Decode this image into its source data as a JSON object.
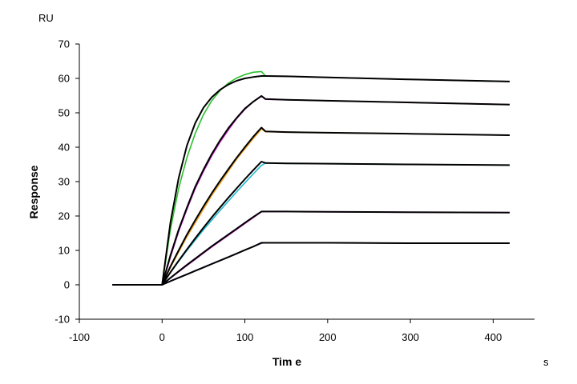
{
  "chart_data": {
    "type": "line",
    "title": "",
    "xlabel": "Tim e",
    "ylabel": "Response",
    "x_unit": "s",
    "y_unit": "RU",
    "xlim": [
      -100,
      450
    ],
    "ylim": [
      -10,
      70
    ],
    "x_ticks": [
      "-100",
      "0",
      "100",
      "200",
      "300",
      "400"
    ],
    "y_ticks": [
      "-10",
      "0",
      "10",
      "20",
      "30",
      "40",
      "50",
      "60",
      "70"
    ],
    "grid": false,
    "legend": "none",
    "association_end_s": 120,
    "series": [
      {
        "color": "#2bbf2b",
        "x": [
          -60,
          0,
          10,
          20,
          30,
          40,
          50,
          60,
          70,
          80,
          90,
          100,
          110,
          120,
          125,
          150,
          200,
          300,
          420
        ],
        "values": [
          0,
          0,
          16,
          28,
          37,
          44,
          49.5,
          53.5,
          56.5,
          58.6,
          60.1,
          61.1,
          61.8,
          62.0,
          60.7,
          60.6,
          60.3,
          59.7,
          59.1
        ]
      },
      {
        "color": "#000000",
        "x": [
          -60,
          0,
          10,
          20,
          30,
          40,
          50,
          60,
          70,
          80,
          90,
          100,
          110,
          120,
          125,
          150,
          200,
          300,
          420
        ],
        "values": [
          0,
          0,
          18,
          31,
          40.5,
          47,
          51.5,
          54.5,
          56.7,
          58.2,
          59.3,
          60.0,
          60.4,
          60.7,
          60.7,
          60.6,
          60.3,
          59.7,
          59.1
        ]
      },
      {
        "color": "#cc1fcc",
        "x": [
          -60,
          0,
          10,
          20,
          30,
          40,
          50,
          60,
          70,
          80,
          90,
          100,
          110,
          120,
          125,
          150,
          200,
          300,
          420
        ],
        "values": [
          0,
          0,
          8,
          15.5,
          22,
          28,
          33,
          37.5,
          41.5,
          45,
          48.3,
          51,
          53.2,
          54.8,
          53.9,
          53.8,
          53.5,
          53.0,
          52.4
        ]
      },
      {
        "color": "#000000",
        "x": [
          -60,
          0,
          10,
          20,
          30,
          40,
          50,
          60,
          70,
          80,
          90,
          100,
          110,
          120,
          125,
          150,
          200,
          300,
          420
        ],
        "values": [
          0,
          0,
          8.5,
          16,
          22.5,
          28.5,
          33.5,
          38,
          42,
          45.5,
          48.5,
          51.2,
          53.2,
          54.9,
          54.0,
          53.8,
          53.5,
          53.0,
          52.4
        ]
      },
      {
        "color": "#f0a020",
        "x": [
          -60,
          0,
          10,
          20,
          30,
          40,
          50,
          60,
          70,
          80,
          90,
          100,
          110,
          120,
          125,
          150,
          200,
          300,
          420
        ],
        "values": [
          0,
          0,
          5,
          9.5,
          14,
          18,
          22,
          26,
          29.5,
          33,
          36.5,
          39.5,
          42.5,
          45.3,
          44.5,
          44.4,
          44.2,
          43.9,
          43.5
        ]
      },
      {
        "color": "#000000",
        "x": [
          -60,
          0,
          10,
          20,
          30,
          40,
          50,
          60,
          70,
          80,
          90,
          100,
          110,
          120,
          125,
          150,
          200,
          300,
          420
        ],
        "values": [
          0,
          0,
          5.3,
          10,
          14.6,
          18.8,
          22.8,
          26.6,
          30.2,
          33.6,
          36.9,
          40,
          43,
          45.7,
          44.6,
          44.4,
          44.2,
          43.9,
          43.5
        ]
      },
      {
        "color": "#20b8d0",
        "x": [
          -60,
          0,
          10,
          20,
          30,
          40,
          50,
          60,
          70,
          80,
          90,
          100,
          110,
          120,
          125,
          150,
          200,
          300,
          420
        ],
        "values": [
          0,
          0,
          3.5,
          6.8,
          10,
          13,
          16,
          18.8,
          21.6,
          24.3,
          27,
          29.6,
          32.2,
          34.7,
          35.4,
          35.3,
          35.2,
          35.0,
          34.8
        ]
      },
      {
        "color": "#000000",
        "x": [
          -60,
          0,
          10,
          20,
          30,
          40,
          50,
          60,
          70,
          80,
          90,
          100,
          110,
          120,
          125,
          150,
          200,
          300,
          420
        ],
        "values": [
          0,
          0,
          3.6,
          7,
          10.3,
          13.5,
          16.6,
          19.6,
          22.5,
          25.3,
          28,
          30.7,
          33.3,
          35.8,
          35.4,
          35.3,
          35.2,
          35.0,
          34.8
        ]
      },
      {
        "color": "#d020d0",
        "x": [
          -60,
          0,
          10,
          20,
          30,
          40,
          50,
          60,
          70,
          80,
          90,
          100,
          110,
          120,
          125,
          150,
          200,
          300,
          420
        ],
        "values": [
          0,
          0,
          1.9,
          3.8,
          5.6,
          7.4,
          9.2,
          11,
          12.7,
          14.4,
          16.1,
          17.8,
          19.5,
          21.2,
          21.3,
          21.3,
          21.2,
          21.1,
          21.0
        ]
      },
      {
        "color": "#000000",
        "x": [
          -60,
          0,
          10,
          20,
          30,
          40,
          50,
          60,
          70,
          80,
          90,
          100,
          110,
          120,
          125,
          150,
          200,
          300,
          420
        ],
        "values": [
          0,
          0,
          2,
          3.9,
          5.8,
          7.6,
          9.4,
          11.2,
          12.9,
          14.6,
          16.3,
          18,
          19.7,
          21.3,
          21.3,
          21.3,
          21.2,
          21.1,
          21.0
        ]
      },
      {
        "color": "#2020d0",
        "x": [
          -60,
          0,
          10,
          20,
          30,
          40,
          50,
          60,
          70,
          80,
          90,
          100,
          110,
          120,
          125,
          150,
          200,
          300,
          420
        ],
        "values": [
          0,
          0,
          1.1,
          2.1,
          3.1,
          4.1,
          5.1,
          6.1,
          7.1,
          8.1,
          9.1,
          10.1,
          11.1,
          12.1,
          12.2,
          12.2,
          12.2,
          12.1,
          12.1
        ]
      },
      {
        "color": "#000000",
        "x": [
          -60,
          0,
          10,
          20,
          30,
          40,
          50,
          60,
          70,
          80,
          90,
          100,
          110,
          120,
          125,
          150,
          200,
          300,
          420
        ],
        "values": [
          0,
          0,
          1.05,
          2.05,
          3.05,
          4.05,
          5.05,
          6.05,
          7.05,
          8.05,
          9.05,
          10.1,
          11.1,
          12.2,
          12.2,
          12.2,
          12.2,
          12.1,
          12.1
        ]
      }
    ]
  }
}
